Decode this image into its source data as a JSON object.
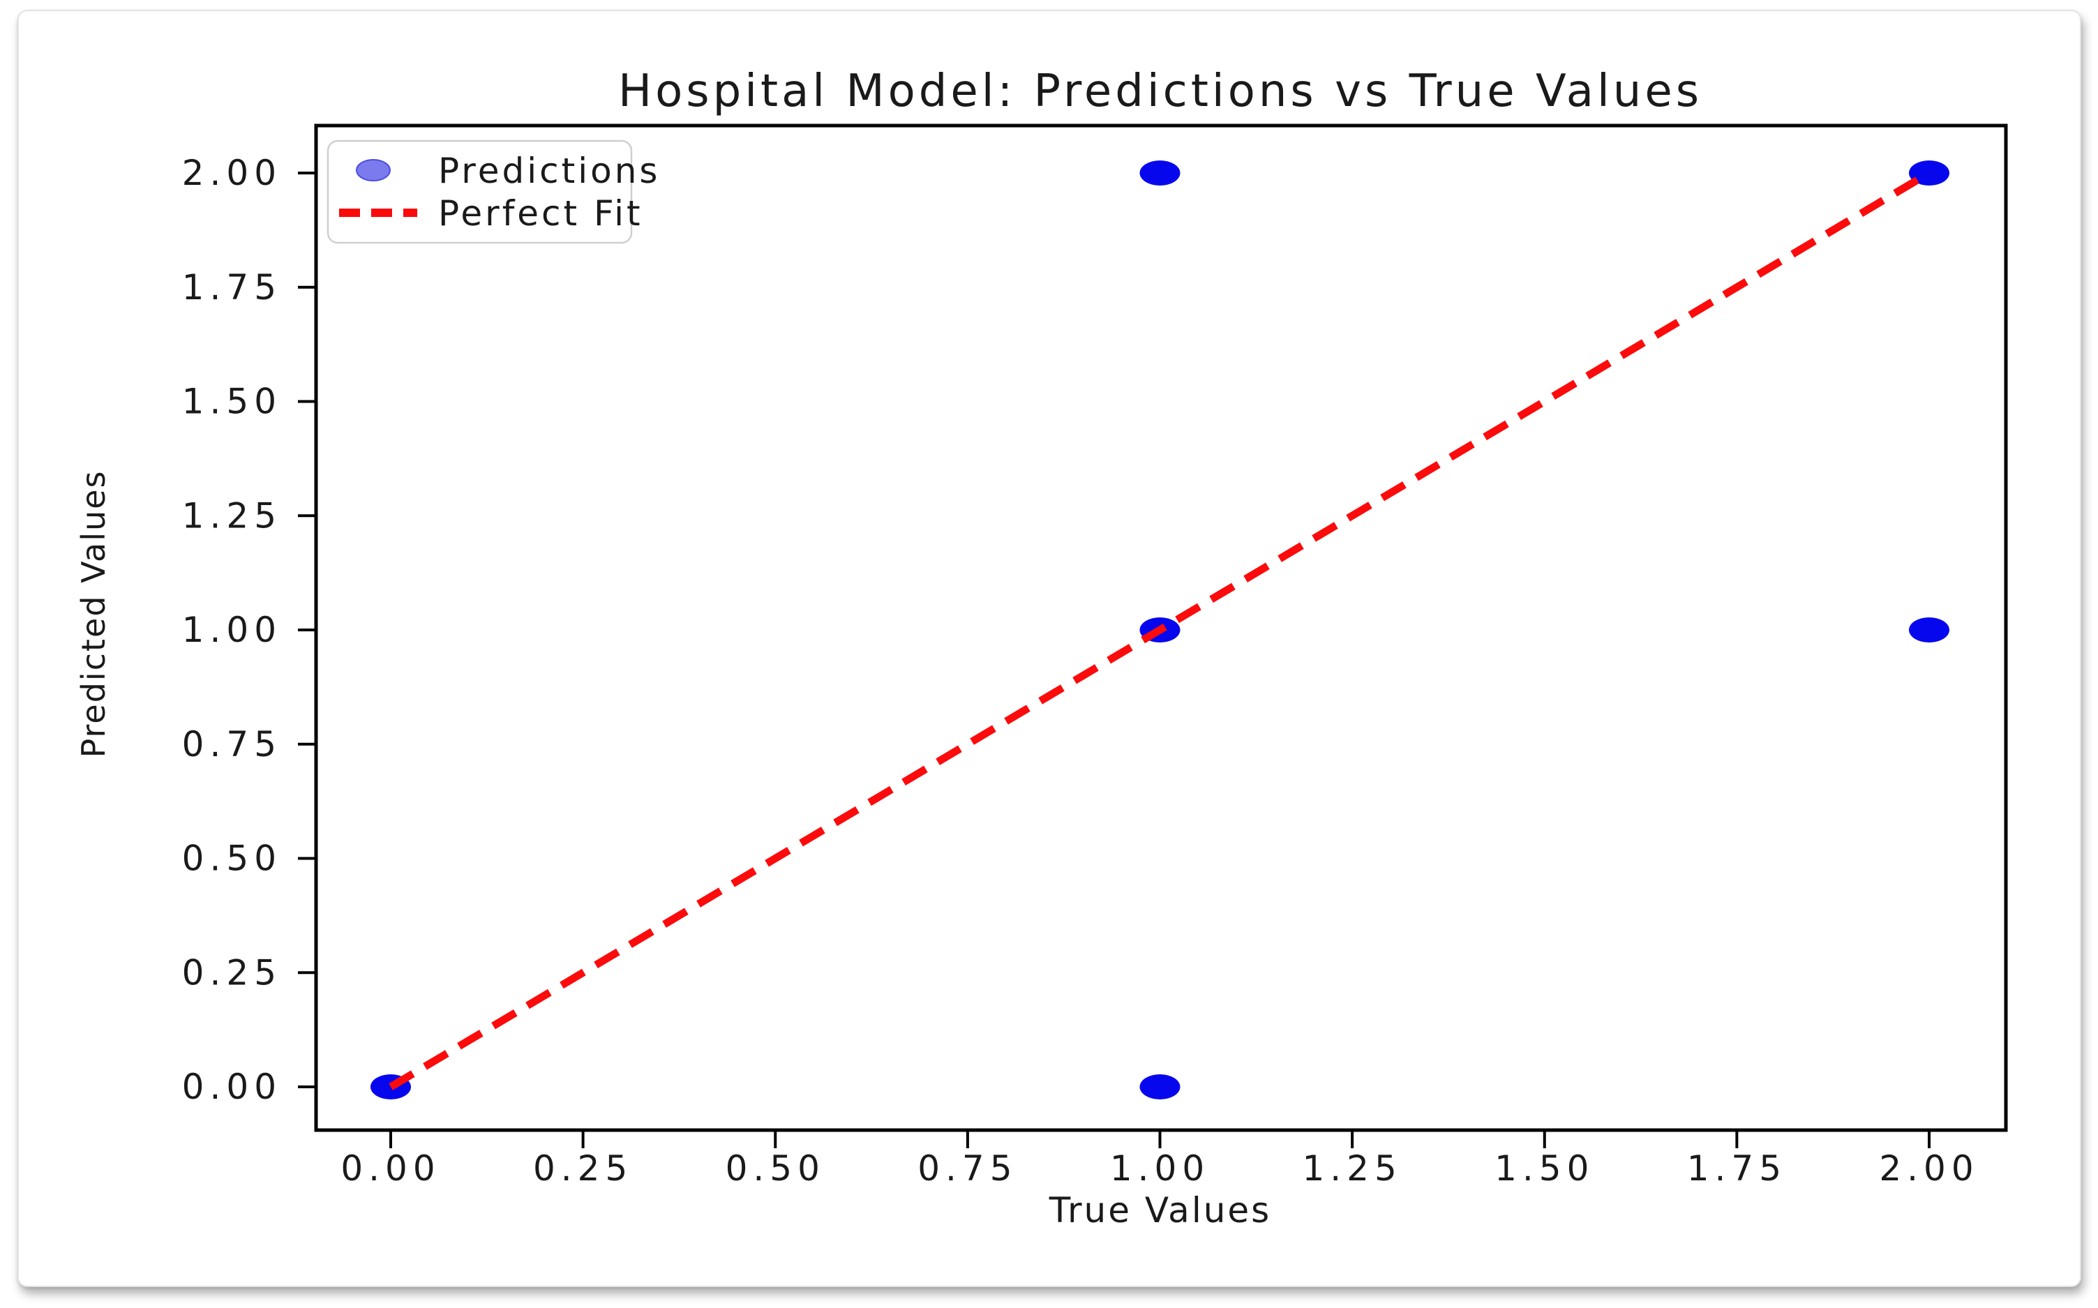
{
  "chart_data": {
    "type": "scatter",
    "title": "Hospital Model: Predictions vs True Values",
    "xlabel": "True Values",
    "ylabel": "Predicted Values",
    "xlim": [
      -0.1,
      2.1
    ],
    "ylim": [
      -0.1,
      2.1
    ],
    "grid": false,
    "xtick_labels": [
      "0.00",
      "0.25",
      "0.50",
      "0.75",
      "1.00",
      "1.25",
      "1.50",
      "1.75",
      "2.00"
    ],
    "ytick_labels": [
      "0.00",
      "0.25",
      "0.50",
      "0.75",
      "1.00",
      "1.25",
      "1.50",
      "1.75",
      "2.00"
    ],
    "xtick_values": [
      0,
      0.25,
      0.5,
      0.75,
      1,
      1.25,
      1.5,
      1.75,
      2
    ],
    "ytick_values": [
      0,
      0.25,
      0.5,
      0.75,
      1,
      1.25,
      1.5,
      1.75,
      2
    ],
    "series": [
      {
        "name": "Predictions",
        "type": "scatter",
        "points": [
          [
            0,
            0
          ],
          [
            1,
            0
          ],
          [
            1,
            1
          ],
          [
            1,
            2
          ],
          [
            2,
            1
          ],
          [
            2,
            2
          ]
        ]
      },
      {
        "name": "Perfect Fit",
        "type": "dashed-line",
        "from": [
          0,
          0
        ],
        "to": [
          2,
          2
        ]
      }
    ],
    "legend": {
      "position": "upper-left",
      "entries": [
        {
          "label": "Predictions",
          "marker": "circle"
        },
        {
          "label": "Perfect Fit",
          "marker": "dashed-line"
        }
      ]
    },
    "colors": {
      "scatter_point": "#0707ee",
      "legend_marker_fill": "#7b7bee",
      "legend_marker_stroke": "#4d4de0",
      "perfect_fit_line": "#fb0b0b",
      "axis_frame": "#000000",
      "text": "#1a1a1a",
      "legend_border": "#cfcfcf"
    }
  }
}
